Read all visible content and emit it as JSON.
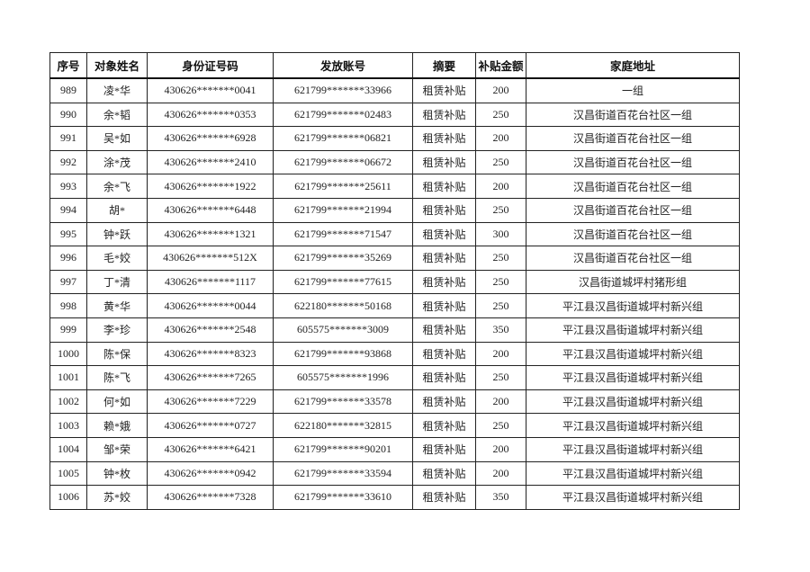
{
  "headers": [
    "序号",
    "对象姓名",
    "身份证号码",
    "发放账号",
    "摘要",
    "补贴金额",
    "家庭地址"
  ],
  "rows": [
    [
      "989",
      "凌*华",
      "430626*******0041",
      "621799*******33966",
      "租赁补贴",
      "200",
      "一组"
    ],
    [
      "990",
      "余*韬",
      "430626*******0353",
      "621799*******02483",
      "租赁补贴",
      "250",
      "汉昌街道百花台社区一组"
    ],
    [
      "991",
      "吴*如",
      "430626*******6928",
      "621799*******06821",
      "租赁补贴",
      "200",
      "汉昌街道百花台社区一组"
    ],
    [
      "992",
      "涂*茂",
      "430626*******2410",
      "621799*******06672",
      "租赁补贴",
      "250",
      "汉昌街道百花台社区一组"
    ],
    [
      "993",
      "余*飞",
      "430626*******1922",
      "621799*******25611",
      "租赁补贴",
      "200",
      "汉昌街道百花台社区一组"
    ],
    [
      "994",
      "胡*",
      "430626*******6448",
      "621799*******21994",
      "租赁补贴",
      "250",
      "汉昌街道百花台社区一组"
    ],
    [
      "995",
      "钟*跃",
      "430626*******1321",
      "621799*******71547",
      "租赁补贴",
      "300",
      "汉昌街道百花台社区一组"
    ],
    [
      "996",
      "毛*姣",
      "430626*******512X",
      "621799*******35269",
      "租赁补贴",
      "250",
      "汉昌街道百花台社区一组"
    ],
    [
      "997",
      "丁*清",
      "430626*******1117",
      "621799*******77615",
      "租赁补贴",
      "250",
      "汉昌街道城坪村猪形组"
    ],
    [
      "998",
      "黄*华",
      "430626*******0044",
      "622180*******50168",
      "租赁补贴",
      "250",
      "平江县汉昌街道城坪村新兴组"
    ],
    [
      "999",
      "李*珍",
      "430626*******2548",
      "605575*******3009",
      "租赁补贴",
      "350",
      "平江县汉昌街道城坪村新兴组"
    ],
    [
      "1000",
      "陈*保",
      "430626*******8323",
      "621799*******93868",
      "租赁补贴",
      "200",
      "平江县汉昌街道城坪村新兴组"
    ],
    [
      "1001",
      "陈*飞",
      "430626*******7265",
      "605575*******1996",
      "租赁补贴",
      "250",
      "平江县汉昌街道城坪村新兴组"
    ],
    [
      "1002",
      "何*如",
      "430626*******7229",
      "621799*******33578",
      "租赁补贴",
      "200",
      "平江县汉昌街道城坪村新兴组"
    ],
    [
      "1003",
      "赖*娥",
      "430626*******0727",
      "622180*******32815",
      "租赁补贴",
      "250",
      "平江县汉昌街道城坪村新兴组"
    ],
    [
      "1004",
      "邹*荣",
      "430626*******6421",
      "621799*******90201",
      "租赁补贴",
      "200",
      "平江县汉昌街道城坪村新兴组"
    ],
    [
      "1005",
      "钟*枚",
      "430626*******0942",
      "621799*******33594",
      "租赁补贴",
      "200",
      "平江县汉昌街道城坪村新兴组"
    ],
    [
      "1006",
      "苏*姣",
      "430626*******7328",
      "621799*******33610",
      "租赁补贴",
      "350",
      "平江县汉昌街道城坪村新兴组"
    ]
  ]
}
